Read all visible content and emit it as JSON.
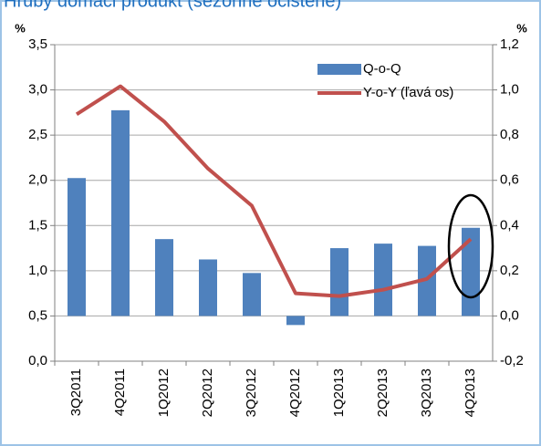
{
  "chart_data": {
    "type": "bar-line",
    "title": "Hrubý domáci produkt (sezónne očistené)",
    "y_label": "%",
    "y2_label": "%",
    "categories": [
      "3Q2011",
      "4Q2011",
      "1Q2012",
      "2Q2012",
      "3Q2012",
      "4Q2012",
      "1Q2013",
      "2Q2013",
      "3Q2013",
      "4Q2013"
    ],
    "series": [
      {
        "name": "Q-o-Q",
        "type": "bar",
        "axis": "y2",
        "color": "#4f81bd",
        "values": [
          0.61,
          0.91,
          0.34,
          0.25,
          0.19,
          -0.04,
          0.3,
          0.32,
          0.31,
          0.39
        ]
      },
      {
        "name": "Y-o-Y (ľavá os)",
        "type": "line",
        "axis": "y",
        "color": "#c0504d",
        "values": [
          2.73,
          3.04,
          2.65,
          2.13,
          1.72,
          0.75,
          0.72,
          0.79,
          0.91,
          1.35
        ]
      }
    ],
    "ylim": [
      0,
      3.5
    ],
    "yticks": [
      {
        "value": 0,
        "label": "0,0"
      },
      {
        "value": 0.5,
        "label": "0,5"
      },
      {
        "value": 1,
        "label": "1,0"
      },
      {
        "value": 1.5,
        "label": "1,5"
      },
      {
        "value": 2,
        "label": "2,0"
      },
      {
        "value": 2.5,
        "label": "2,5"
      },
      {
        "value": 3,
        "label": "3,0"
      },
      {
        "value": 3.5,
        "label": "3,5"
      }
    ],
    "y2lim": [
      -0.2,
      1.2
    ],
    "y2ticks": [
      {
        "value": -0.2,
        "label": "-0,2"
      },
      {
        "value": 0,
        "label": "0,0"
      },
      {
        "value": 0.2,
        "label": "0,2"
      },
      {
        "value": 0.4,
        "label": "0,4"
      },
      {
        "value": 0.6,
        "label": "0,6"
      },
      {
        "value": 0.8,
        "label": "0,8"
      },
      {
        "value": 1,
        "label": "1,0"
      },
      {
        "value": 1.2,
        "label": "1,2"
      }
    ],
    "grid": true,
    "legend": "top-right"
  }
}
